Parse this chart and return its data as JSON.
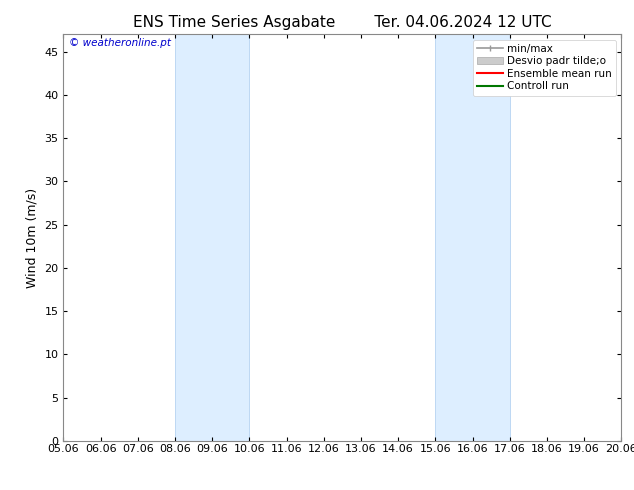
{
  "title_left": "ENS Time Series Asgabate",
  "title_right": "Ter. 04.06.2024 12 UTC",
  "ylabel": "Wind 10m (m/s)",
  "watermark": "© weatheronline.pt",
  "watermark_color": "#0000cc",
  "ylim": [
    0,
    47
  ],
  "yticks": [
    0,
    5,
    10,
    15,
    20,
    25,
    30,
    35,
    40,
    45
  ],
  "xtick_labels": [
    "05.06",
    "06.06",
    "07.06",
    "08.06",
    "09.06",
    "10.06",
    "11.06",
    "12.06",
    "13.06",
    "14.06",
    "15.06",
    "16.06",
    "17.06",
    "18.06",
    "19.06",
    "20.06"
  ],
  "x_values": [
    0,
    1,
    2,
    3,
    4,
    5,
    6,
    7,
    8,
    9,
    10,
    11,
    12,
    13,
    14,
    15
  ],
  "background_color": "#ffffff",
  "plot_bg_color": "#ffffff",
  "shaded_regions": [
    {
      "xmin": 3,
      "xmax": 5,
      "color": "#ddeeff"
    },
    {
      "xmin": 10,
      "xmax": 12,
      "color": "#ddeeff"
    }
  ],
  "shaded_border_color": "#aaccee",
  "legend_entries": [
    {
      "label": "min/max",
      "color": "#999999",
      "lw": 1.2
    },
    {
      "label": "Desvio padr tilde;o",
      "color": "#cccccc",
      "lw": 8
    },
    {
      "label": "Ensemble mean run",
      "color": "#ff0000",
      "lw": 1.5
    },
    {
      "label": "Controll run",
      "color": "#007700",
      "lw": 1.5
    }
  ],
  "title_fontsize": 11,
  "tick_fontsize": 8,
  "label_fontsize": 9,
  "legend_fontsize": 7.5
}
